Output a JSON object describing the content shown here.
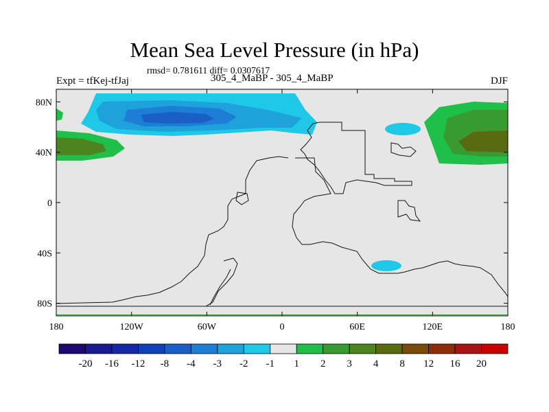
{
  "title": "Mean Sea Level Pressure (in hPa)",
  "stats": "rmsd= 0.781611 diff= 0.0307617",
  "expt_label": "Expt = tfKej-tfJaj",
  "runs_label": "305_4_MaBP - 305_4_MaBP",
  "season": "DJF",
  "x_ticks": [
    {
      "lon": -180,
      "label": "180"
    },
    {
      "lon": -120,
      "label": "120W"
    },
    {
      "lon": -60,
      "label": "60W"
    },
    {
      "lon": 0,
      "label": "0"
    },
    {
      "lon": 60,
      "label": "60E"
    },
    {
      "lon": 120,
      "label": "120E"
    },
    {
      "lon": 180,
      "label": "180"
    }
  ],
  "y_ticks": [
    {
      "lat": 80,
      "label": "80N"
    },
    {
      "lat": 40,
      "label": "40N"
    },
    {
      "lat": 0,
      "label": "0"
    },
    {
      "lat": -40,
      "label": "40S"
    },
    {
      "lat": -80,
      "label": "80S"
    }
  ],
  "lon_range": [
    -180,
    180
  ],
  "lat_range": [
    -90,
    90
  ],
  "colorbar": {
    "labels": [
      "-20",
      "-16",
      "-12",
      "-8",
      "-4",
      "-3",
      "-2",
      "-1",
      "1",
      "2",
      "3",
      "4",
      "8",
      "12",
      "16",
      "20"
    ],
    "colors": [
      "#1e0a6e",
      "#1a1a90",
      "#1528a8",
      "#1040b8",
      "#1a5ec8",
      "#1e7ed6",
      "#1ea2dc",
      "#1ec8e6",
      "#e6e6e6",
      "#1ec04a",
      "#3a9a32",
      "#4e8420",
      "#5a6a10",
      "#7a4a08",
      "#8c2e0a",
      "#a81414",
      "#c80000"
    ]
  }
}
